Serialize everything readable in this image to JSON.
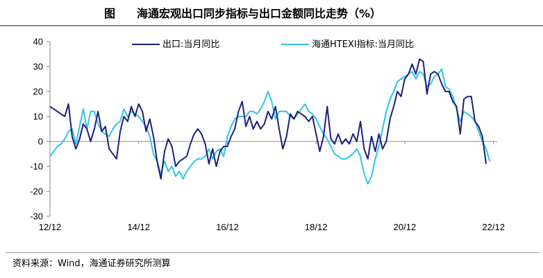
{
  "header": {
    "label": "图",
    "title": "海通宏观出口同步指标与出口金额同比走势（%）"
  },
  "footer": {
    "source": "资料来源：Wind，海通证券研究所测算"
  },
  "chart_data": {
    "type": "line",
    "title": "海通宏观出口同步指标与出口金额同比走势（%）",
    "xlabel": "",
    "ylabel": "",
    "ylim": [
      -30,
      40
    ],
    "yticks": [
      "40",
      "30",
      "20",
      "10",
      "0",
      "-10",
      "-20",
      "-30"
    ],
    "xticks": [
      "12/12",
      "14/12",
      "16/12",
      "18/12",
      "20/12",
      "22/12"
    ],
    "xlim": [
      0,
      121
    ],
    "grid": false,
    "legend_position": "top",
    "series": [
      {
        "name": "出口:当月同比",
        "color": "#1a1f7a",
        "values": [
          [
            0,
            14
          ],
          [
            2,
            12
          ],
          [
            4,
            10
          ],
          [
            5,
            15
          ],
          [
            6,
            2
          ],
          [
            7,
            -3
          ],
          [
            8,
            1
          ],
          [
            9,
            7
          ],
          [
            10,
            5
          ],
          [
            11,
            0
          ],
          [
            12,
            5
          ],
          [
            13,
            12
          ],
          [
            14,
            4
          ],
          [
            15,
            6
          ],
          [
            16,
            -3
          ],
          [
            18,
            -7
          ],
          [
            19,
            4
          ],
          [
            20,
            10
          ],
          [
            21,
            8
          ],
          [
            22,
            14
          ],
          [
            23,
            10
          ],
          [
            24,
            15
          ],
          [
            25,
            12
          ],
          [
            26,
            4
          ],
          [
            27,
            9
          ],
          [
            28,
            2
          ],
          [
            29,
            -8
          ],
          [
            30,
            -15
          ],
          [
            31,
            -4
          ],
          [
            32,
            1
          ],
          [
            33,
            -2
          ],
          [
            34,
            -10
          ],
          [
            35,
            -8
          ],
          [
            36,
            -7
          ],
          [
            37,
            -6
          ],
          [
            38,
            -1
          ],
          [
            39,
            3
          ],
          [
            40,
            5
          ],
          [
            41,
            3
          ],
          [
            42,
            -1
          ],
          [
            43,
            -9
          ],
          [
            44,
            -3
          ],
          [
            45,
            -10
          ],
          [
            46,
            -4
          ],
          [
            47,
            -2
          ],
          [
            48,
            -2
          ],
          [
            49,
            2
          ],
          [
            50,
            5
          ],
          [
            51,
            12
          ],
          [
            52,
            16
          ],
          [
            53,
            6
          ],
          [
            54,
            10
          ],
          [
            55,
            5
          ],
          [
            56,
            8
          ],
          [
            57,
            5
          ],
          [
            58,
            7
          ],
          [
            59,
            12
          ],
          [
            60,
            9
          ],
          [
            61,
            14
          ],
          [
            62,
            5
          ],
          [
            63,
            -3
          ],
          [
            64,
            2
          ],
          [
            65,
            11
          ],
          [
            66,
            9
          ],
          [
            67,
            12
          ],
          [
            68,
            11
          ],
          [
            69,
            10
          ],
          [
            70,
            8
          ],
          [
            71,
            10
          ],
          [
            72,
            3
          ],
          [
            73,
            -4
          ],
          [
            74,
            2
          ],
          [
            75,
            14
          ],
          [
            76,
            1
          ],
          [
            77,
            -1
          ],
          [
            78,
            3
          ],
          [
            79,
            -1
          ],
          [
            80,
            1
          ],
          [
            81,
            -1
          ],
          [
            82,
            3
          ],
          [
            83,
            0
          ],
          [
            84,
            8
          ],
          [
            85,
            -3
          ],
          [
            86,
            -7
          ],
          [
            87,
            2
          ],
          [
            88,
            -4
          ],
          [
            89,
            3
          ],
          [
            90,
            -3
          ],
          [
            91,
            0
          ],
          [
            92,
            9
          ],
          [
            93,
            14
          ],
          [
            94,
            20
          ],
          [
            95,
            18
          ],
          [
            96,
            25
          ],
          [
            97,
            27
          ],
          [
            98,
            31
          ],
          [
            99,
            27
          ],
          [
            100,
            33
          ],
          [
            101,
            32
          ],
          [
            102,
            19
          ],
          [
            103,
            27
          ],
          [
            104,
            28
          ],
          [
            105,
            27
          ],
          [
            106,
            23
          ],
          [
            107,
            20
          ],
          [
            108,
            20
          ],
          [
            109,
            16
          ],
          [
            110,
            14
          ],
          [
            111,
            3
          ],
          [
            112,
            17
          ],
          [
            113,
            18
          ],
          [
            114,
            18
          ],
          [
            115,
            8
          ],
          [
            116,
            6
          ],
          [
            117,
            2
          ],
          [
            118,
            -9
          ]
        ]
      },
      {
        "name": "海通HTEXI指标:当月同比",
        "color": "#2ec4ec",
        "values": [
          [
            0,
            -6
          ],
          [
            1,
            -4
          ],
          [
            2,
            -2
          ],
          [
            3,
            -1
          ],
          [
            4,
            1
          ],
          [
            5,
            4
          ],
          [
            6,
            5
          ],
          [
            7,
            -1
          ],
          [
            8,
            6
          ],
          [
            9,
            13
          ],
          [
            10,
            5
          ],
          [
            11,
            12
          ],
          [
            12,
            12
          ],
          [
            13,
            7
          ],
          [
            14,
            4
          ],
          [
            15,
            3
          ],
          [
            16,
            2
          ],
          [
            17,
            5
          ],
          [
            18,
            7
          ],
          [
            19,
            8
          ],
          [
            20,
            13
          ],
          [
            21,
            10
          ],
          [
            22,
            12
          ],
          [
            23,
            11
          ],
          [
            24,
            10
          ],
          [
            25,
            8
          ],
          [
            26,
            6
          ],
          [
            27,
            2
          ],
          [
            28,
            -5
          ],
          [
            29,
            -8
          ],
          [
            30,
            -13
          ],
          [
            31,
            -8
          ],
          [
            32,
            -12
          ],
          [
            33,
            -10
          ],
          [
            34,
            -14
          ],
          [
            35,
            -12
          ],
          [
            36,
            -15
          ],
          [
            37,
            -12
          ],
          [
            38,
            -10
          ],
          [
            39,
            -8
          ],
          [
            40,
            -7
          ],
          [
            41,
            -7
          ],
          [
            42,
            -6
          ],
          [
            43,
            -3
          ],
          [
            44,
            -7
          ],
          [
            45,
            -4
          ],
          [
            46,
            -3
          ],
          [
            47,
            -6
          ],
          [
            48,
            2
          ],
          [
            49,
            6
          ],
          [
            50,
            9
          ],
          [
            51,
            10
          ],
          [
            52,
            10
          ],
          [
            53,
            10
          ],
          [
            54,
            12
          ],
          [
            55,
            12
          ],
          [
            56,
            11
          ],
          [
            57,
            13
          ],
          [
            58,
            16
          ],
          [
            59,
            20
          ],
          [
            60,
            16
          ],
          [
            61,
            9
          ],
          [
            62,
            12
          ],
          [
            63,
            12
          ],
          [
            64,
            12
          ],
          [
            65,
            10
          ],
          [
            66,
            9
          ],
          [
            67,
            11
          ],
          [
            68,
            13
          ],
          [
            69,
            15
          ],
          [
            70,
            12
          ],
          [
            71,
            11
          ],
          [
            72,
            9
          ],
          [
            73,
            6
          ],
          [
            74,
            3
          ],
          [
            75,
            1
          ],
          [
            76,
            -2
          ],
          [
            77,
            -5
          ],
          [
            78,
            -6
          ],
          [
            79,
            -7
          ],
          [
            80,
            -7
          ],
          [
            81,
            -6
          ],
          [
            82,
            -5
          ],
          [
            83,
            -3
          ],
          [
            84,
            -6
          ],
          [
            85,
            -13
          ],
          [
            86,
            -17
          ],
          [
            87,
            -14
          ],
          [
            88,
            -7
          ],
          [
            89,
            -2
          ],
          [
            90,
            5
          ],
          [
            91,
            12
          ],
          [
            92,
            17
          ],
          [
            93,
            20
          ],
          [
            94,
            24
          ],
          [
            95,
            25
          ],
          [
            96,
            26
          ],
          [
            97,
            27
          ],
          [
            98,
            28
          ],
          [
            99,
            25
          ],
          [
            100,
            28
          ],
          [
            101,
            27
          ],
          [
            102,
            22
          ],
          [
            103,
            23
          ],
          [
            104,
            26
          ],
          [
            105,
            27
          ],
          [
            106,
            29
          ],
          [
            107,
            22
          ],
          [
            108,
            21
          ],
          [
            109,
            18
          ],
          [
            110,
            13
          ],
          [
            111,
            8
          ],
          [
            112,
            12
          ],
          [
            113,
            11
          ],
          [
            114,
            10
          ],
          [
            115,
            8
          ],
          [
            116,
            4
          ],
          [
            117,
            0
          ],
          [
            118,
            -3
          ],
          [
            119,
            -8
          ]
        ]
      }
    ]
  }
}
